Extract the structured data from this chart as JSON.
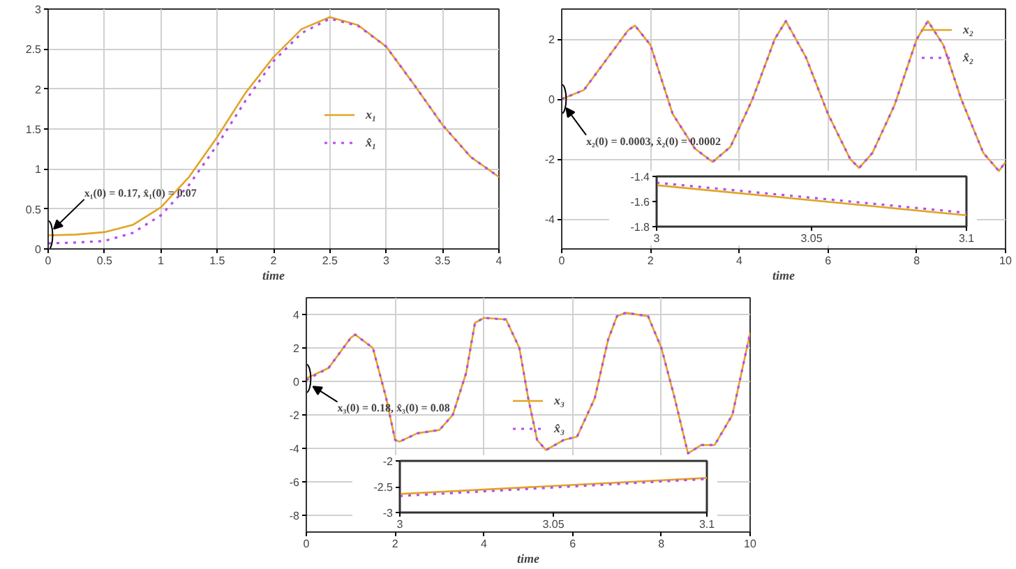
{
  "chart_data": [
    {
      "type": "line",
      "xlabel": "time",
      "xlim": [
        0,
        4
      ],
      "ylim": [
        0,
        3
      ],
      "xticks": [
        0,
        0.5,
        1,
        1.5,
        2,
        2.5,
        3,
        3.5,
        4
      ],
      "yticks": [
        0,
        0.5,
        1,
        1.5,
        2,
        2.5,
        3
      ],
      "grid": true,
      "legend": "right",
      "annotations": [
        {
          "text": "x₁(0) = 0.17,  x̂₁(0) = 0.07",
          "x": 0.05,
          "y": 0.25
        }
      ],
      "x": [
        0,
        0.25,
        0.5,
        0.75,
        1,
        1.25,
        1.5,
        1.75,
        2,
        2.25,
        2.5,
        2.75,
        3,
        3.25,
        3.5,
        3.75,
        4
      ],
      "series": [
        {
          "name": "x₁",
          "color": "#e0a526",
          "line_style": "solid",
          "values": [
            0.17,
            0.18,
            0.21,
            0.3,
            0.52,
            0.9,
            1.4,
            1.95,
            2.4,
            2.75,
            2.9,
            2.8,
            2.53,
            2.05,
            1.55,
            1.15,
            0.9
          ]
        },
        {
          "name": "x̂₁",
          "color": "#b44cf0",
          "line_style": "dotted",
          "values": [
            0.07,
            0.08,
            0.1,
            0.2,
            0.42,
            0.8,
            1.3,
            1.85,
            2.35,
            2.7,
            2.88,
            2.79,
            2.53,
            2.05,
            1.55,
            1.15,
            0.9
          ]
        }
      ]
    },
    {
      "type": "line",
      "xlabel": "time",
      "xlim": [
        0,
        10
      ],
      "ylim": [
        -5,
        3
      ],
      "xticks": [
        0,
        2,
        4,
        6,
        8,
        10
      ],
      "yticks": [
        -4,
        -2,
        0,
        2
      ],
      "grid": true,
      "legend": "top right",
      "annotations": [
        {
          "text": "x₂(0) = 0.0003,  x̂₂(0) = 0.0002",
          "x": 0.1,
          "y": -0.3
        }
      ],
      "x": [
        0,
        0.5,
        1,
        1.5,
        1.65,
        2,
        2.5,
        3,
        3.4,
        3.8,
        4.3,
        4.8,
        5.05,
        5.5,
        6,
        6.5,
        6.7,
        7,
        7.5,
        8,
        8.25,
        8.6,
        9,
        9.5,
        9.85,
        10
      ],
      "series": [
        {
          "name": "x₂",
          "color": "#e0a526",
          "line_style": "solid",
          "values": [
            0,
            0.3,
            1.3,
            2.3,
            2.45,
            1.8,
            -0.5,
            -1.65,
            -2.1,
            -1.6,
            0,
            2,
            2.6,
            1.4,
            -0.5,
            -2,
            -2.3,
            -1.8,
            -0.2,
            2,
            2.6,
            1.8,
            0,
            -1.8,
            -2.4,
            -2.1
          ]
        },
        {
          "name": "x̂₂",
          "color": "#b44cf0",
          "line_style": "dotted",
          "values": [
            0,
            0.3,
            1.3,
            2.3,
            2.45,
            1.8,
            -0.5,
            -1.65,
            -2.1,
            -1.6,
            0,
            2,
            2.6,
            1.4,
            -0.5,
            -2,
            -2.3,
            -1.8,
            -0.2,
            2,
            2.6,
            1.8,
            0,
            -1.8,
            -2.4,
            -2.1
          ]
        }
      ]
    },
    {
      "type": "line",
      "xlim": [
        3,
        3.1
      ],
      "ylim": [
        -1.8,
        -1.4
      ],
      "xticks": [
        3,
        3.05,
        3.1
      ],
      "yticks": [
        -1.8,
        -1.6,
        -1.4
      ],
      "grid": false,
      "x": [
        3,
        3.1
      ],
      "series": [
        {
          "color": "#e0a526",
          "line_style": "solid",
          "values": [
            -1.47,
            -1.71
          ]
        },
        {
          "color": "#b44cf0",
          "line_style": "dotted",
          "values": [
            -1.45,
            -1.69
          ]
        }
      ]
    },
    {
      "type": "line",
      "xlabel": "time",
      "xlim": [
        0,
        10
      ],
      "ylim": [
        -9,
        5
      ],
      "xticks": [
        0,
        2,
        4,
        6,
        8,
        10
      ],
      "yticks": [
        -8,
        -6,
        -4,
        -2,
        0,
        2,
        4
      ],
      "grid": true,
      "legend": "right",
      "annotations": [
        {
          "text": "x₃(0) = 0.18,  x̂₃(0) = 0.08",
          "x": 0.15,
          "y": -0.3
        }
      ],
      "x": [
        0,
        0.5,
        1,
        1.1,
        1.5,
        1.8,
        2,
        2.1,
        2.5,
        3,
        3.3,
        3.6,
        3.8,
        4,
        4.5,
        4.8,
        5,
        5.2,
        5.4,
        5.8,
        6.1,
        6.5,
        6.8,
        7,
        7.2,
        7.7,
        8,
        8.3,
        8.6,
        8.9,
        9.2,
        9.6,
        10
      ],
      "series": [
        {
          "name": "x₃",
          "color": "#e0a526",
          "line_style": "solid",
          "values": [
            0.18,
            0.8,
            2.6,
            2.8,
            2,
            -1,
            -3.5,
            -3.6,
            -3.1,
            -2.9,
            -2,
            0.5,
            3.5,
            3.8,
            3.7,
            2,
            -1,
            -3.5,
            -4.1,
            -3.5,
            -3.3,
            -1,
            2.5,
            3.9,
            4.1,
            3.9,
            2,
            -1,
            -4.3,
            -3.8,
            -3.8,
            -2,
            2.9
          ]
        },
        {
          "name": "x̂₃",
          "color": "#b44cf0",
          "line_style": "dotted",
          "values": [
            0.08,
            0.8,
            2.6,
            2.8,
            2,
            -1,
            -3.5,
            -3.6,
            -3.1,
            -2.9,
            -2,
            0.5,
            3.5,
            3.8,
            3.7,
            2,
            -1,
            -3.5,
            -4.1,
            -3.5,
            -3.3,
            -1,
            2.5,
            3.9,
            4.1,
            3.9,
            2,
            -1,
            -4.3,
            -3.8,
            -3.8,
            -2,
            2.9
          ]
        }
      ]
    },
    {
      "type": "line",
      "xlim": [
        3,
        3.1
      ],
      "ylim": [
        -3,
        -2
      ],
      "xticks": [
        3,
        3.05,
        3.1
      ],
      "yticks": [
        -3,
        -2.5,
        -2
      ],
      "grid": false,
      "x": [
        3,
        3.1
      ],
      "series": [
        {
          "color": "#e0a526",
          "line_style": "solid",
          "values": [
            -2.64,
            -2.33
          ]
        },
        {
          "color": "#b44cf0",
          "line_style": "dotted",
          "values": [
            -2.68,
            -2.35
          ]
        }
      ]
    }
  ]
}
